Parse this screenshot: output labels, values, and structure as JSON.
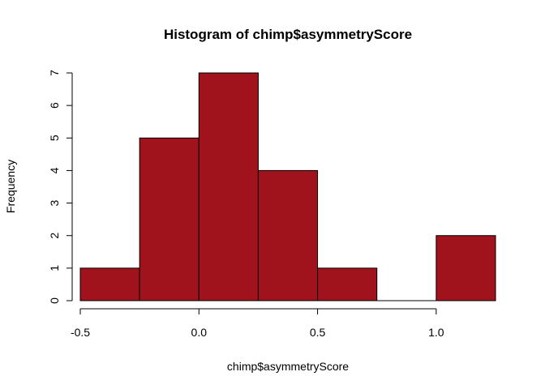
{
  "chart_data": {
    "type": "bar",
    "title": "Histogram of chimp$asymmetryScore",
    "xlabel": "chimp$asymmetryScore",
    "ylabel": "Frequency",
    "bins": [
      {
        "start": -0.5,
        "end": -0.25,
        "count": 1
      },
      {
        "start": -0.25,
        "end": 0.0,
        "count": 5
      },
      {
        "start": 0.0,
        "end": 0.25,
        "count": 7
      },
      {
        "start": 0.25,
        "end": 0.5,
        "count": 4
      },
      {
        "start": 0.5,
        "end": 0.75,
        "count": 1
      },
      {
        "start": 0.75,
        "end": 1.0,
        "count": 0
      },
      {
        "start": 1.0,
        "end": 1.25,
        "count": 2
      }
    ],
    "xticks": [
      -0.5,
      0.0,
      0.5,
      1.0
    ],
    "xtick_labels": [
      "-0.5",
      "0.0",
      "0.5",
      "1.0"
    ],
    "yticks": [
      0,
      1,
      2,
      3,
      4,
      5,
      6,
      7
    ],
    "ytick_labels": [
      "0",
      "1",
      "2",
      "3",
      "4",
      "5",
      "6",
      "7"
    ],
    "xlim": [
      -0.5,
      1.25
    ],
    "ylim": [
      0,
      7
    ],
    "bar_color": "#A0121C",
    "grid": false
  }
}
